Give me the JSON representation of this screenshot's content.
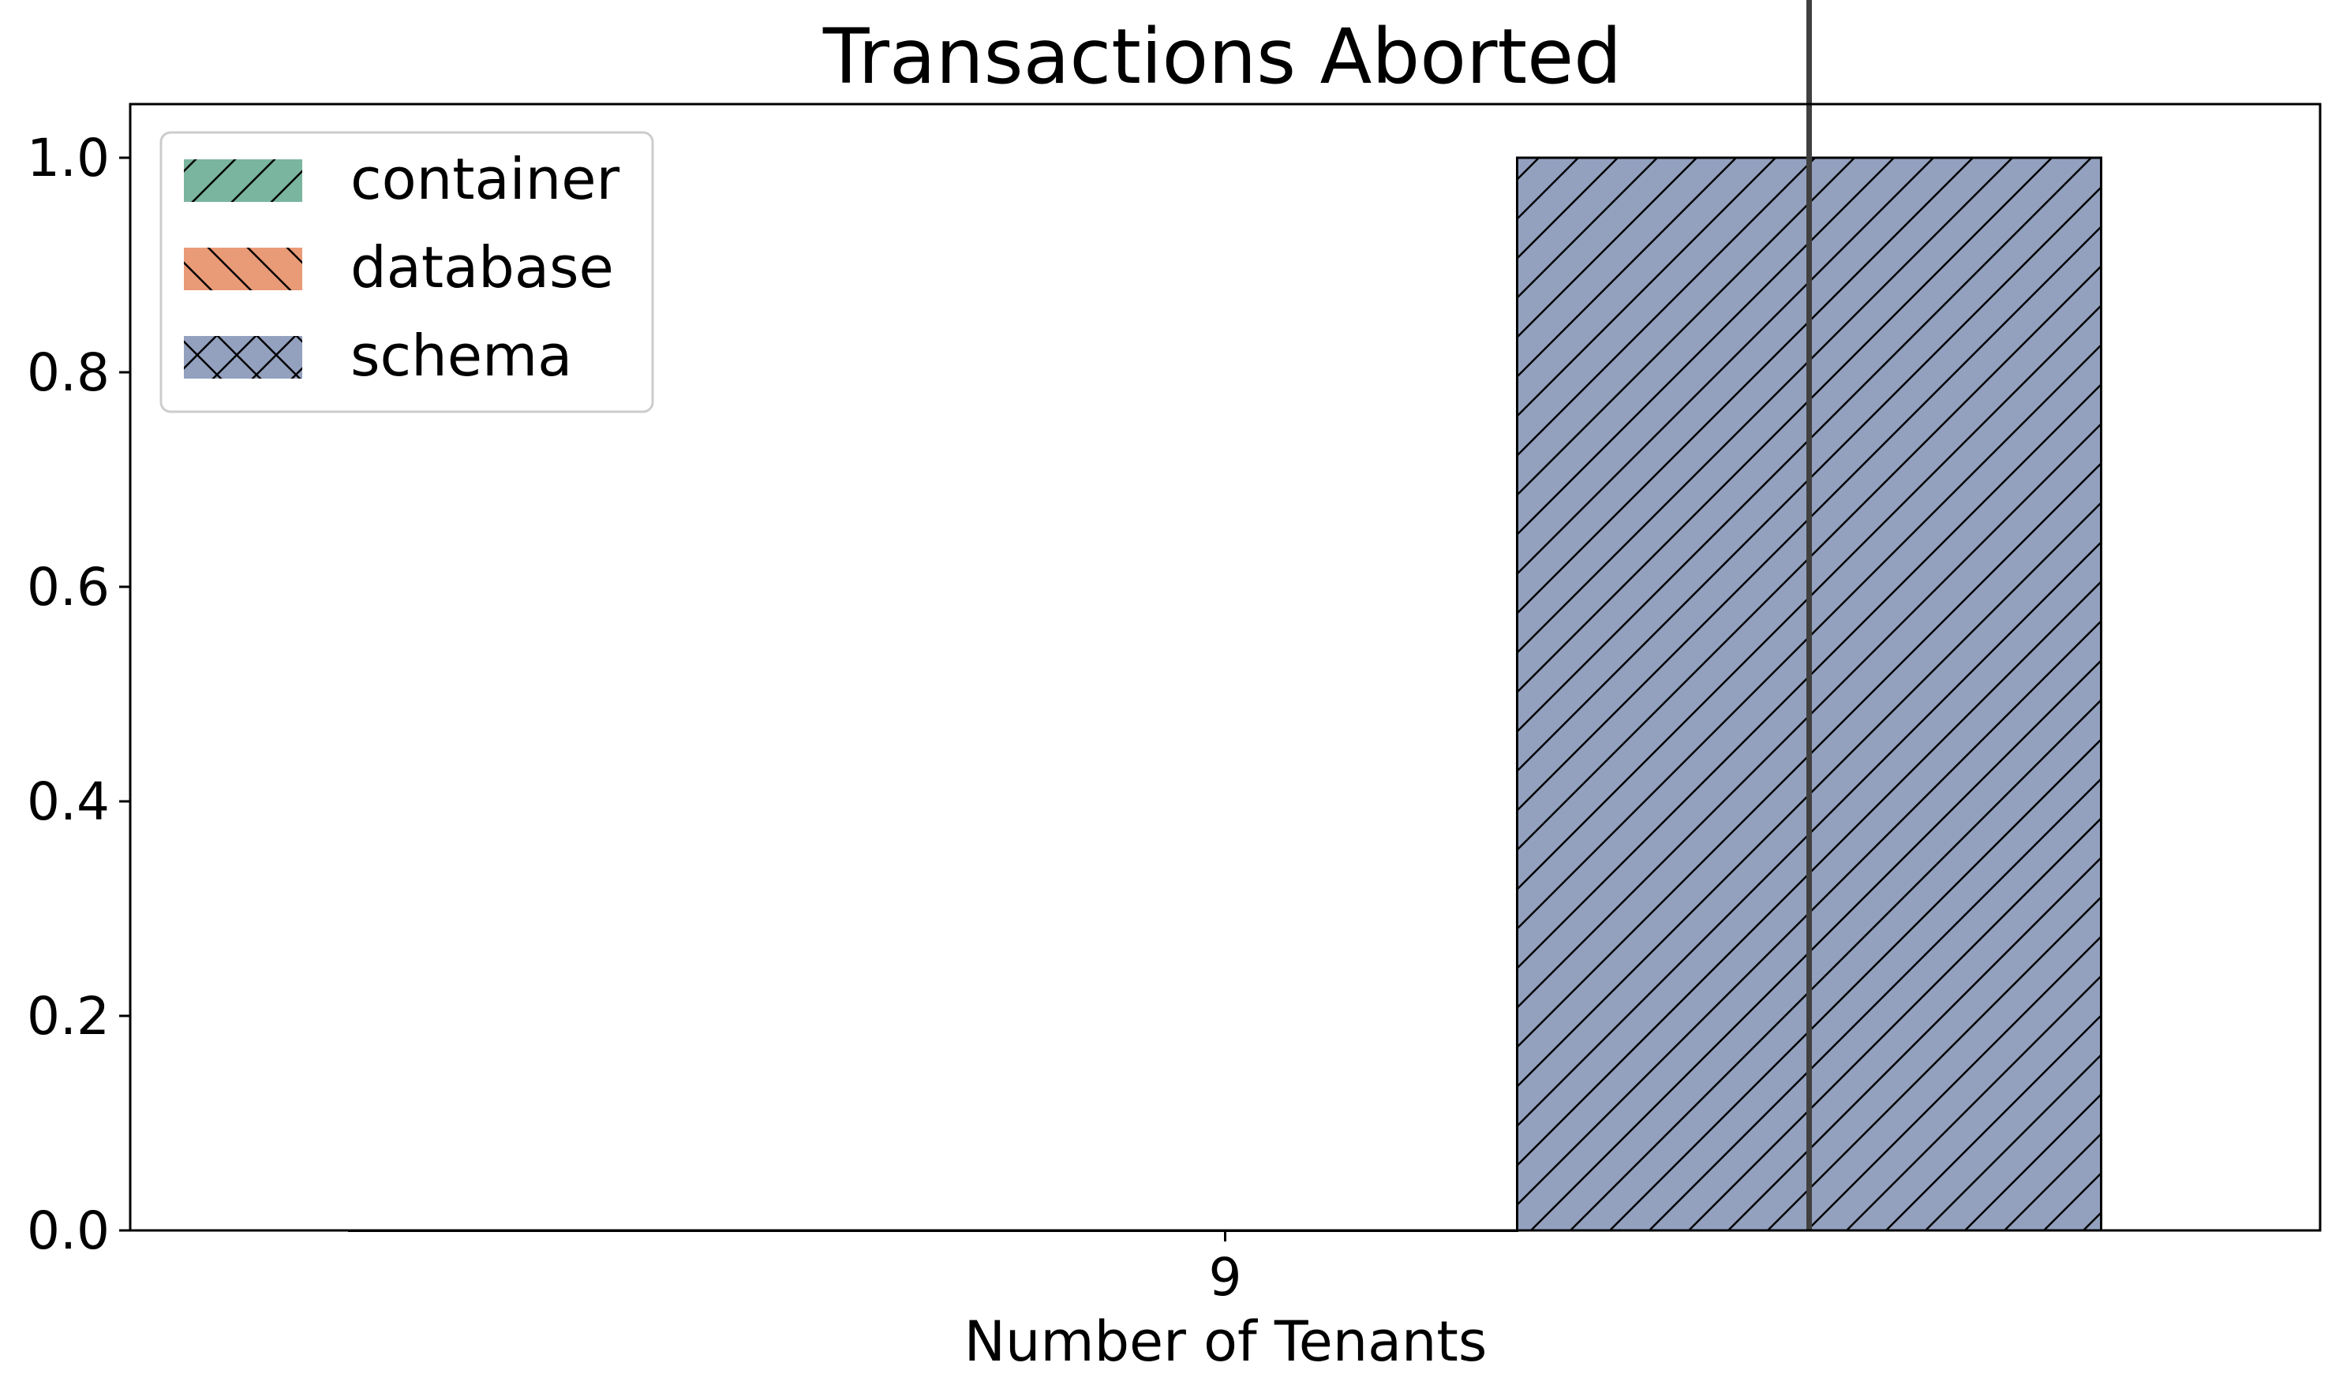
{
  "chart_data": {
    "type": "bar",
    "title": "Transactions Aborted",
    "xlabel": "Number of Tenants",
    "ylabel": "",
    "categories": [
      "9"
    ],
    "ylim": [
      0,
      1.05
    ],
    "yticks": [
      "0.0",
      "0.2",
      "0.4",
      "0.6",
      "0.8",
      "1.0"
    ],
    "grid": false,
    "legend_position": "top-left",
    "series": [
      {
        "name": "container",
        "values": [
          0.0
        ],
        "error": [
          0.0
        ],
        "color": "#7ab59f",
        "hatch": "/"
      },
      {
        "name": "database",
        "values": [
          0.0
        ],
        "error": [
          0.0
        ],
        "color": "#e99a77",
        "hatch": "\\"
      },
      {
        "name": "schema",
        "values": [
          1.0
        ],
        "error": [
          1.0
        ],
        "color": "#93a1bf",
        "hatch": "x"
      }
    ]
  }
}
